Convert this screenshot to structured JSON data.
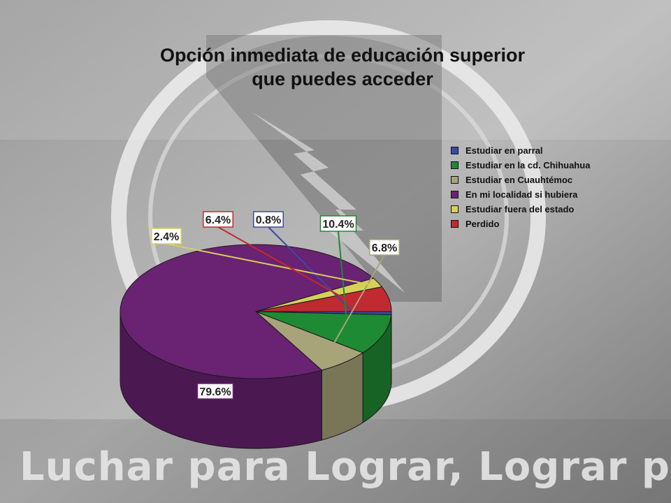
{
  "title_lines": [
    "Opción inmediata de educación superior",
    "que puedes acceder"
  ],
  "watermark": "Luchar para Lograr, Lograr para Dar",
  "chart_data": {
    "type": "pie",
    "title": "Opción inmediata de educación superior que puedes acceder",
    "legend_position": "right",
    "slices": [
      {
        "label": "Estudiar en parral",
        "value": 0.8,
        "display": "0.8%",
        "color": "#3a4aa0"
      },
      {
        "label": "Estudiar en la cd. Chihuahua",
        "value": 10.4,
        "display": "10.4%",
        "color": "#1e8a34"
      },
      {
        "label": "Estudiar en Cuauhtémoc",
        "value": 6.8,
        "display": "6.8%",
        "color": "#a8a47a"
      },
      {
        "label": "En mi localidad si hubiera",
        "value": 79.6,
        "display": "79.6%",
        "color": "#6a2272"
      },
      {
        "label": "Estudiar fuera del estado",
        "value": 2.4,
        "display": "2.4%",
        "color": "#d6d05a"
      },
      {
        "label": "Perdido",
        "value": 6.4,
        "display": "6.4%",
        "color": "#c02a30"
      }
    ]
  }
}
